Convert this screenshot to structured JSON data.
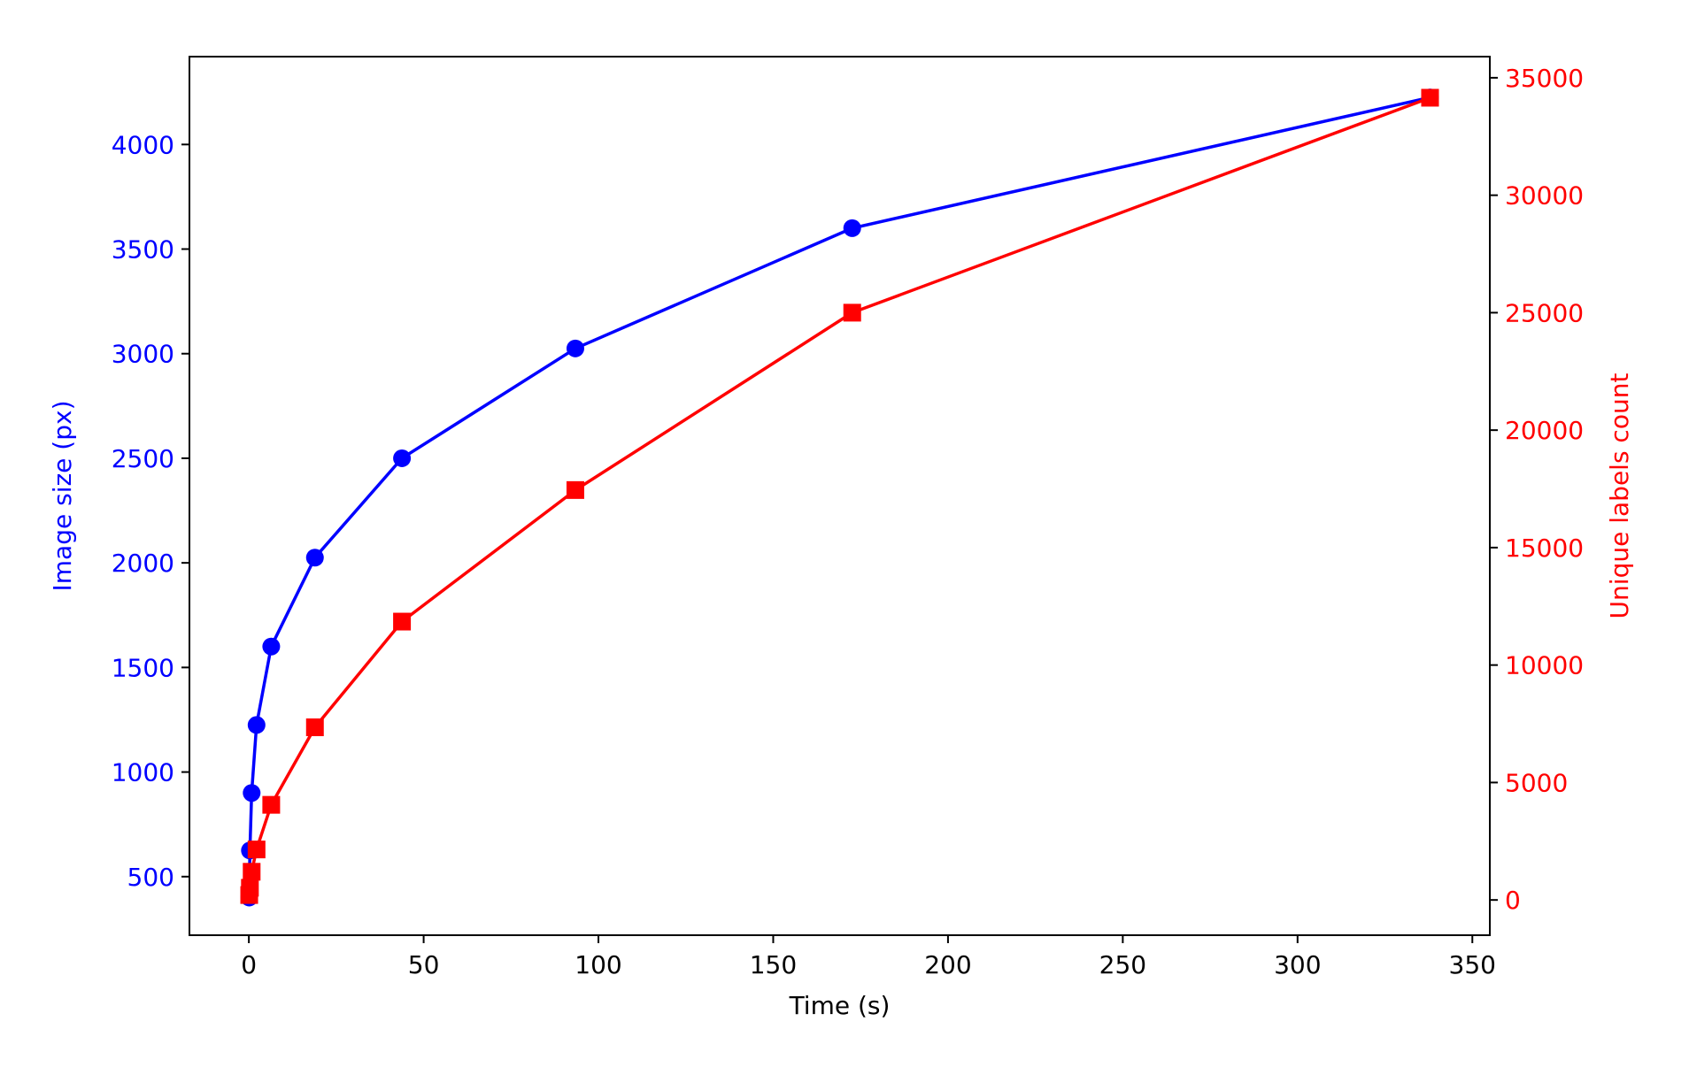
{
  "chart_data": {
    "type": "line",
    "xlabel": "Time (s)",
    "ylabel_left": "Image size (px)",
    "ylabel_right": "Unique labels count",
    "xlim": [
      -17,
      355
    ],
    "ylim_left": [
      220,
      4420
    ],
    "ylim_right": [
      -1500,
      35900
    ],
    "xticks": [
      0,
      50,
      100,
      150,
      200,
      250,
      300,
      350
    ],
    "yticks_left": [
      500,
      1000,
      1500,
      2000,
      2500,
      3000,
      3500,
      4000
    ],
    "yticks_right": [
      0,
      5000,
      10000,
      15000,
      20000,
      25000,
      30000,
      35000
    ],
    "grid": false,
    "colors": {
      "left": "#0000ff",
      "right": "#ff0000",
      "axis": "#000000"
    },
    "series": [
      {
        "axis": "left",
        "marker": "circle",
        "x": [
          0.1,
          0.3,
          0.8,
          2.2,
          6.4,
          18.9,
          43.8,
          93.4,
          172.6,
          337.9
        ],
        "y": [
          400,
          625,
          900,
          1225,
          1600,
          2025,
          2500,
          3025,
          3600,
          4225
        ]
      },
      {
        "axis": "right",
        "marker": "square",
        "x": [
          0.1,
          0.3,
          0.8,
          2.2,
          6.4,
          18.9,
          43.8,
          93.4,
          172.6,
          337.9
        ],
        "y": [
          210,
          520,
          1200,
          2150,
          4050,
          7350,
          11850,
          17450,
          25000,
          34150
        ]
      }
    ]
  }
}
